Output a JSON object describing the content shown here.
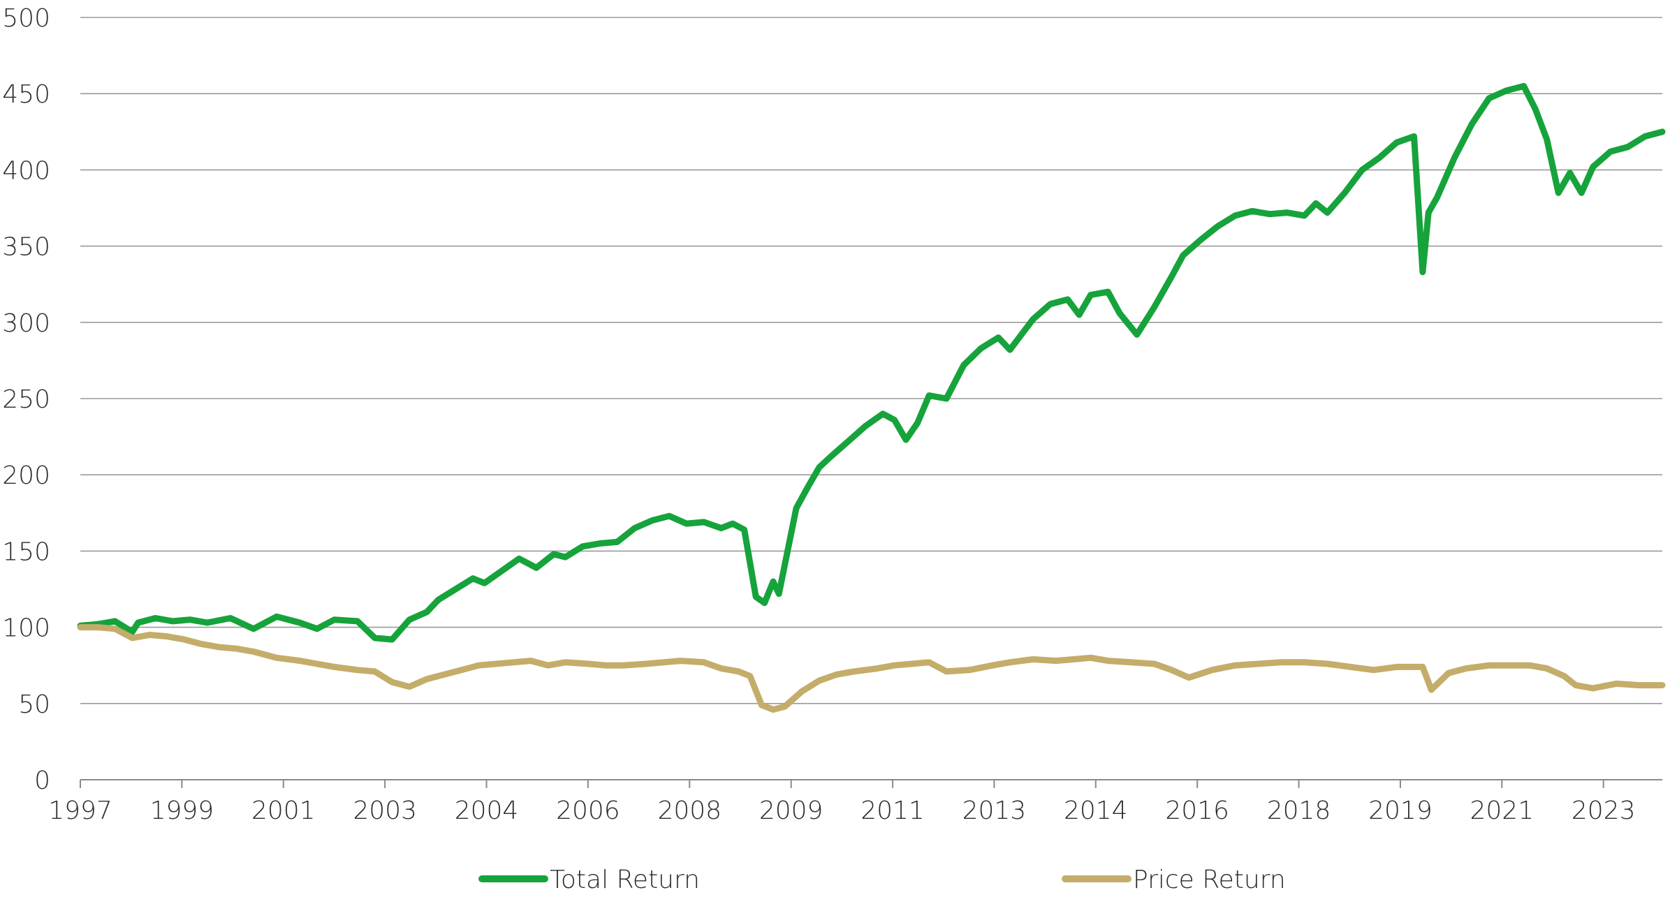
{
  "chart_data": {
    "type": "line",
    "title": "",
    "xlabel": "",
    "ylabel": "",
    "ylim": [
      0,
      500
    ],
    "xlim": [
      1997.0,
      2024.4
    ],
    "y_ticks": [
      0,
      50,
      100,
      150,
      200,
      250,
      300,
      350,
      400,
      450,
      500
    ],
    "x_tick_labels": [
      "1997",
      "1999",
      "2001",
      "2003",
      "2004",
      "2006",
      "2008",
      "2009",
      "2011",
      "2013",
      "2014",
      "2016",
      "2018",
      "2019",
      "2021",
      "2023"
    ],
    "grid": true,
    "legend_position": "bottom",
    "series": [
      {
        "name": "Total Return",
        "color": "#16a33b",
        "x": [
          1997.0,
          1997.3,
          1997.6,
          1997.9,
          1998.0,
          1998.3,
          1998.6,
          1998.9,
          1999.2,
          1999.6,
          2000.0,
          2000.4,
          2000.8,
          2001.1,
          2001.4,
          2001.8,
          2002.1,
          2002.4,
          2002.7,
          2003.0,
          2003.2,
          2003.5,
          2003.8,
          2004.0,
          2004.3,
          2004.6,
          2004.9,
          2005.2,
          2005.4,
          2005.7,
          2006.0,
          2006.3,
          2006.6,
          2006.9,
          2007.2,
          2007.5,
          2007.8,
          2008.1,
          2008.3,
          2008.5,
          2008.7,
          2008.85,
          2009.0,
          2009.1,
          2009.25,
          2009.4,
          2009.6,
          2009.8,
          2010.0,
          2010.3,
          2010.6,
          2010.9,
          2011.1,
          2011.3,
          2011.5,
          2011.7,
          2012.0,
          2012.3,
          2012.6,
          2012.9,
          2013.1,
          2013.3,
          2013.5,
          2013.8,
          2014.1,
          2014.3,
          2014.5,
          2014.8,
          2015.0,
          2015.3,
          2015.6,
          2015.9,
          2016.1,
          2016.4,
          2016.7,
          2017.0,
          2017.3,
          2017.6,
          2017.9,
          2018.2,
          2018.4,
          2018.6,
          2018.9,
          2019.2,
          2019.5,
          2019.8,
          2020.1,
          2020.25,
          2020.35,
          2020.5,
          2020.8,
          2021.1,
          2021.4,
          2021.7,
          2022.0,
          2022.2,
          2022.4,
          2022.6,
          2022.8,
          2023.0,
          2023.2,
          2023.5,
          2023.8,
          2024.1,
          2024.4
        ],
        "values": [
          101,
          102,
          104,
          97,
          103,
          106,
          104,
          105,
          103,
          106,
          99,
          107,
          103,
          99,
          105,
          104,
          93,
          92,
          105,
          110,
          118,
          125,
          132,
          129,
          137,
          145,
          139,
          148,
          146,
          153,
          155,
          156,
          165,
          170,
          173,
          168,
          169,
          165,
          168,
          164,
          120,
          116,
          130,
          122,
          150,
          178,
          192,
          205,
          212,
          222,
          232,
          240,
          236,
          223,
          234,
          252,
          250,
          272,
          283,
          290,
          282,
          292,
          302,
          312,
          315,
          305,
          318,
          320,
          306,
          292,
          310,
          330,
          344,
          354,
          363,
          370,
          373,
          371,
          372,
          370,
          378,
          372,
          385,
          400,
          408,
          418,
          422,
          333,
          372,
          382,
          408,
          430,
          447,
          452,
          455,
          440,
          420,
          385,
          398,
          385,
          402,
          412,
          415,
          422,
          425
        ]
      },
      {
        "name": "Price Return",
        "color": "#c4ad6a",
        "x": [
          1997.0,
          1997.3,
          1997.6,
          1997.9,
          1998.2,
          1998.5,
          1998.8,
          1999.1,
          1999.4,
          1999.7,
          2000.0,
          2000.4,
          2000.8,
          2001.1,
          2001.4,
          2001.8,
          2002.1,
          2002.4,
          2002.7,
          2003.0,
          2003.3,
          2003.6,
          2003.9,
          2004.2,
          2004.5,
          2004.8,
          2005.1,
          2005.4,
          2005.8,
          2006.1,
          2006.4,
          2006.8,
          2007.1,
          2007.4,
          2007.8,
          2008.1,
          2008.4,
          2008.6,
          2008.8,
          2009.0,
          2009.2,
          2009.5,
          2009.8,
          2010.1,
          2010.4,
          2010.8,
          2011.1,
          2011.4,
          2011.7,
          2012.0,
          2012.4,
          2012.8,
          2013.1,
          2013.5,
          2013.9,
          2014.2,
          2014.5,
          2014.8,
          2015.2,
          2015.6,
          2015.9,
          2016.2,
          2016.6,
          2017.0,
          2017.4,
          2017.8,
          2018.2,
          2018.6,
          2019.0,
          2019.4,
          2019.8,
          2020.1,
          2020.25,
          2020.4,
          2020.7,
          2021.0,
          2021.4,
          2021.8,
          2022.1,
          2022.4,
          2022.7,
          2022.9,
          2023.2,
          2023.6,
          2024.0,
          2024.4
        ],
        "values": [
          100,
          100,
          99,
          93,
          95,
          94,
          92,
          89,
          87,
          86,
          84,
          80,
          78,
          76,
          74,
          72,
          71,
          64,
          61,
          66,
          69,
          72,
          75,
          76,
          77,
          78,
          75,
          77,
          76,
          75,
          75,
          76,
          77,
          78,
          77,
          73,
          71,
          68,
          49,
          46,
          48,
          58,
          65,
          69,
          71,
          73,
          75,
          76,
          77,
          71,
          72,
          75,
          77,
          79,
          78,
          79,
          80,
          78,
          77,
          76,
          72,
          67,
          72,
          75,
          76,
          77,
          77,
          76,
          74,
          72,
          74,
          74,
          74,
          59,
          70,
          73,
          75,
          75,
          75,
          73,
          68,
          62,
          60,
          63,
          62,
          62
        ]
      }
    ]
  }
}
